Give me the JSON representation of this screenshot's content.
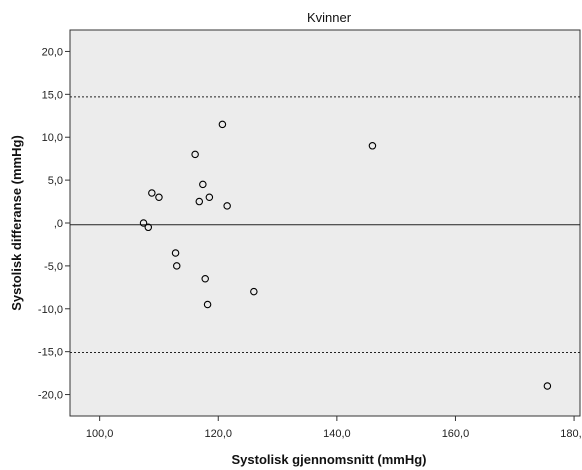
{
  "chart_data": {
    "type": "scatter",
    "title": "Kvinner",
    "xlabel": "Systolisk gjennomsnitt (mmHg)",
    "ylabel": "Systolisk differanse (mmHg)",
    "xlim": [
      95,
      181
    ],
    "ylim": [
      -22.5,
      22.5
    ],
    "x_ticks": [
      100,
      120,
      140,
      160,
      180
    ],
    "x_tick_labels": [
      "100,0",
      "120,0",
      "140,0",
      "160,0",
      "180,0"
    ],
    "y_ticks": [
      20,
      15,
      10,
      5,
      0,
      -5,
      -10,
      -15,
      -20
    ],
    "y_tick_labels": [
      "20,0",
      "15,0",
      "10,0",
      "5,0",
      ",0",
      "-5,0",
      "-10,0",
      "-15,0",
      "-20,0"
    ],
    "reference_lines": [
      {
        "y": 14.7,
        "style": "dotted"
      },
      {
        "y": -0.2,
        "style": "solid"
      },
      {
        "y": -15.1,
        "style": "dotted"
      }
    ],
    "points": [
      {
        "x": 120.7,
        "y": 11.5
      },
      {
        "x": 146.0,
        "y": 9.0
      },
      {
        "x": 116.1,
        "y": 8.0
      },
      {
        "x": 117.4,
        "y": 4.5
      },
      {
        "x": 108.8,
        "y": 3.5
      },
      {
        "x": 110.0,
        "y": 3.0
      },
      {
        "x": 118.5,
        "y": 3.0
      },
      {
        "x": 116.8,
        "y": 2.5
      },
      {
        "x": 121.5,
        "y": 2.0
      },
      {
        "x": 107.4,
        "y": 0.0
      },
      {
        "x": 108.2,
        "y": -0.5
      },
      {
        "x": 112.8,
        "y": -3.5
      },
      {
        "x": 113.0,
        "y": -5.0
      },
      {
        "x": 117.8,
        "y": -6.5
      },
      {
        "x": 126.0,
        "y": -8.0
      },
      {
        "x": 118.2,
        "y": -9.5
      },
      {
        "x": 175.5,
        "y": -19.0
      }
    ],
    "grid": false,
    "plot_background": "#ececec",
    "point_color": "#000000"
  }
}
